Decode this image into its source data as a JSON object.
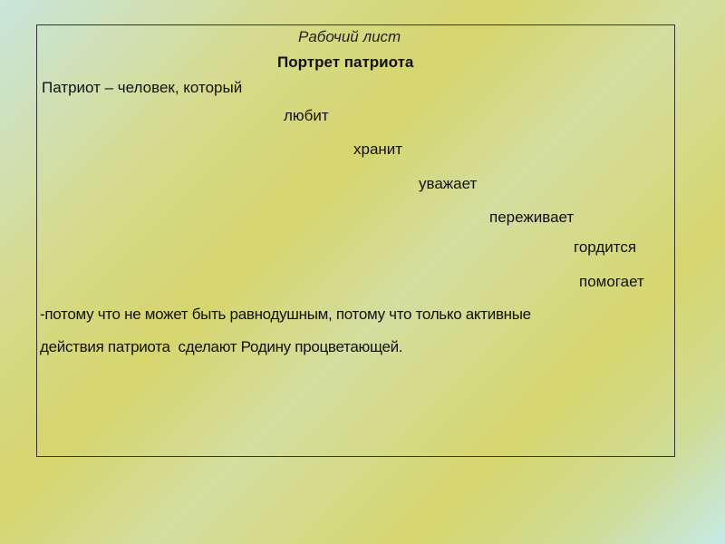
{
  "worksheet": {
    "label": "Рабочий лист",
    "title": "Портрет патриота",
    "intro": "Патриот – человек, который",
    "verbs": [
      "любит",
      "хранит",
      "уважает",
      "переживает",
      "гордится",
      "помогает"
    ],
    "conclusion_line1": "-потому что не может быть равнодушным, потому что только активные",
    "conclusion_line2": "действия патриота  сделают Родину процветающей."
  }
}
